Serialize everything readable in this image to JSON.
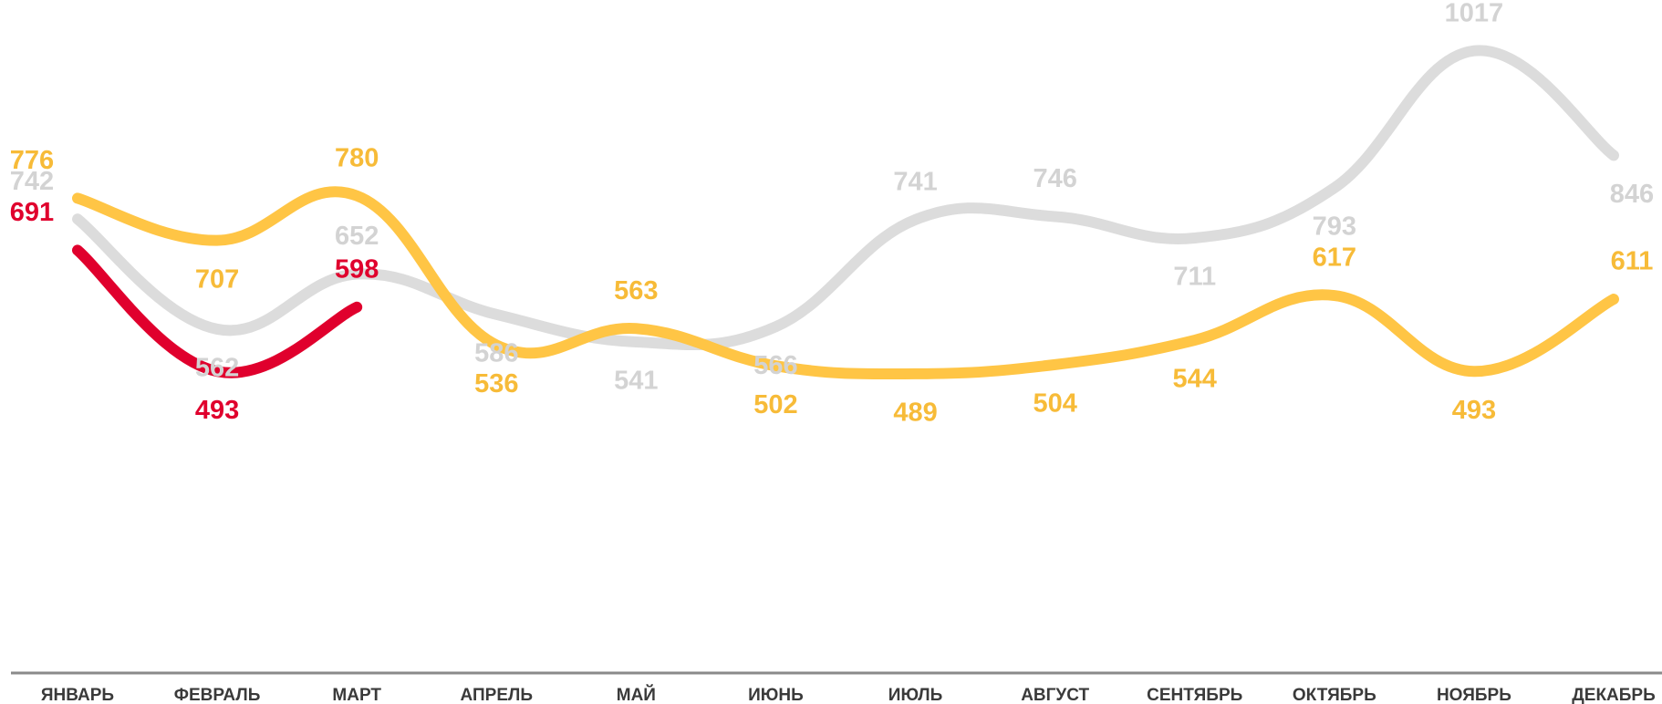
{
  "chart_data": {
    "type": "line",
    "categories": [
      "ЯНВАРЬ",
      "ФЕВРАЛЬ",
      "МАРТ",
      "АПРЕЛЬ",
      "МАЙ",
      "ИЮНЬ",
      "ИЮЛЬ",
      "АВГУСТ",
      "СЕНТЯБРЬ",
      "ОКТЯБРЬ",
      "НОЯБРЬ",
      "ДЕКАБРЬ"
    ],
    "series": [
      {
        "color": "#dcdcdc",
        "label_color": "#d3d3d3",
        "values": [
          742,
          562,
          652,
          586,
          541,
          566,
          741,
          746,
          711,
          793,
          1017,
          846
        ]
      },
      {
        "color": "#ffc545",
        "label_color": "#f7bb38",
        "values": [
          776,
          707,
          780,
          536,
          563,
          502,
          489,
          504,
          544,
          617,
          493,
          611
        ]
      },
      {
        "color": "#e0002d",
        "label_color": "#e0002d",
        "values": [
          691,
          493,
          598,
          null,
          null,
          null,
          null,
          null,
          null,
          null,
          null,
          null
        ]
      }
    ],
    "ylim": [
      0,
      1100
    ]
  }
}
